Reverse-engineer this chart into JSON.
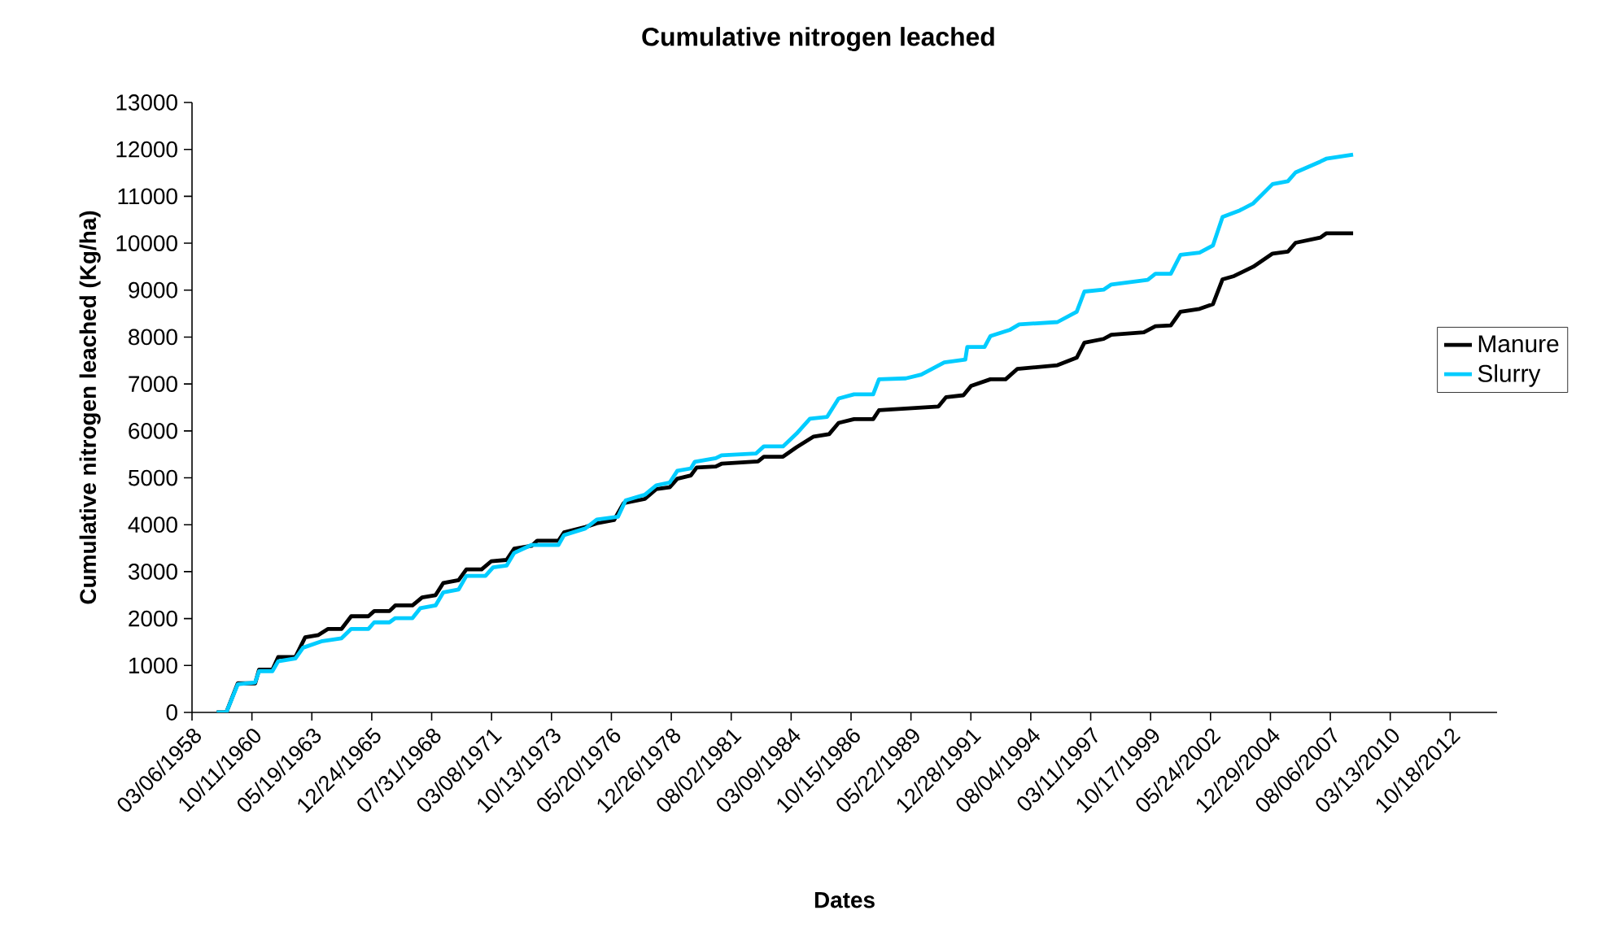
{
  "chart_data": {
    "type": "line",
    "title": "Cumulative nitrogen leached",
    "xlabel": "Dates",
    "ylabel": "Cumulative nitrogen leached (Kg/ha)",
    "xlim": [
      "1958-03-06",
      "2014-11"
    ],
    "xticks": [
      {
        "value": "1958-03-06",
        "label": "03/06/1958"
      },
      {
        "value": "1960-10-11",
        "label": "10/11/1960"
      },
      {
        "value": "1963-05-19",
        "label": "05/19/1963"
      },
      {
        "value": "1965-12-24",
        "label": "12/24/1965"
      },
      {
        "value": "1968-07-31",
        "label": "07/31/1968"
      },
      {
        "value": "1971-03-08",
        "label": "03/08/1971"
      },
      {
        "value": "1973-10-13",
        "label": "10/13/1973"
      },
      {
        "value": "1976-05-20",
        "label": "05/20/1976"
      },
      {
        "value": "1978-12-26",
        "label": "12/26/1978"
      },
      {
        "value": "1981-08-02",
        "label": "08/02/1981"
      },
      {
        "value": "1984-03-09",
        "label": "03/09/1984"
      },
      {
        "value": "1986-10-15",
        "label": "10/15/1986"
      },
      {
        "value": "1989-05-22",
        "label": "05/22/1989"
      },
      {
        "value": "1991-12-28",
        "label": "12/28/1991"
      },
      {
        "value": "1994-08-04",
        "label": "08/04/1994"
      },
      {
        "value": "1997-03-11",
        "label": "03/11/1997"
      },
      {
        "value": "1999-10-17",
        "label": "10/17/1999"
      },
      {
        "value": "2002-05-24",
        "label": "05/24/2002"
      },
      {
        "value": "2004-12-29",
        "label": "12/29/2004"
      },
      {
        "value": "2007-08-06",
        "label": "08/06/2007"
      },
      {
        "value": "2010-03-13",
        "label": "03/13/2010"
      },
      {
        "value": "2012-10-18",
        "label": "10/18/2012"
      }
    ],
    "ylim": [
      0,
      13000
    ],
    "yticks": [
      0,
      1000,
      2000,
      3000,
      4000,
      5000,
      6000,
      7000,
      8000,
      9000,
      10000,
      11000,
      12000,
      13000
    ],
    "legend": "right",
    "series": [
      {
        "name": "Manure",
        "color": "#000000",
        "x": [
          "1959-04",
          "1959-09",
          "1960-03",
          "1960-12",
          "1961-02",
          "1961-09",
          "1961-12",
          "1962-09",
          "1963-02",
          "1963-09",
          "1964-02",
          "1964-09",
          "1965-02",
          "1965-11",
          "1966-02",
          "1966-10",
          "1967-01",
          "1967-10",
          "1968-03",
          "1968-10",
          "1969-02",
          "1969-10",
          "1970-02",
          "1970-10",
          "1971-03",
          "1971-11",
          "1972-03",
          "1972-12",
          "1973-03",
          "1974-02",
          "1974-05",
          "1975-04",
          "1975-10",
          "1976-07",
          "1976-12",
          "1977-11",
          "1978-05",
          "1978-12",
          "1979-04",
          "1979-11",
          "1980-02",
          "1980-12",
          "1981-03",
          "1982-10",
          "1983-01",
          "1983-11",
          "1984-06",
          "1985-03",
          "1985-11",
          "1986-04",
          "1986-12",
          "1987-10",
          "1988-01",
          "1990-08",
          "1990-12",
          "1991-09",
          "1992-01",
          "1992-11",
          "1993-07",
          "1994-01",
          "1995-10",
          "1996-08",
          "1996-12",
          "1997-10",
          "1998-02",
          "1999-07",
          "2000-01",
          "2000-09",
          "2001-02",
          "2001-12",
          "2002-07",
          "2002-12",
          "2003-06",
          "2004-04",
          "2005-02",
          "2005-10",
          "2006-02",
          "2007-03",
          "2007-06",
          "2008-08"
        ],
        "values": [
          0,
          0,
          620,
          620,
          910,
          910,
          1180,
          1180,
          1600,
          1650,
          1780,
          1780,
          2050,
          2050,
          2160,
          2160,
          2280,
          2280,
          2450,
          2500,
          2760,
          2820,
          3050,
          3050,
          3220,
          3250,
          3490,
          3550,
          3660,
          3660,
          3840,
          3950,
          4030,
          4100,
          4460,
          4550,
          4760,
          4800,
          4980,
          5050,
          5220,
          5240,
          5300,
          5350,
          5450,
          5450,
          5650,
          5880,
          5930,
          6170,
          6250,
          6250,
          6440,
          6520,
          6720,
          6760,
          6960,
          7100,
          7100,
          7320,
          7400,
          7560,
          7880,
          7960,
          8050,
          8100,
          8230,
          8250,
          8540,
          8600,
          8700,
          9230,
          9300,
          9500,
          9780,
          9820,
          10010,
          10120,
          10210,
          10210
        ]
      },
      {
        "name": "Slurry",
        "color": "#00ccff",
        "x": [
          "1959-04",
          "1959-09",
          "1960-03",
          "1960-12",
          "1961-02",
          "1961-09",
          "1961-12",
          "1962-09",
          "1963-01",
          "1963-11",
          "1964-09",
          "1965-02",
          "1965-11",
          "1966-02",
          "1966-10",
          "1967-01",
          "1967-10",
          "1968-02",
          "1968-10",
          "1969-02",
          "1969-10",
          "1970-02",
          "1970-12",
          "1971-04",
          "1971-11",
          "1972-03",
          "1972-12",
          "1974-02",
          "1974-05",
          "1975-04",
          "1975-10",
          "1976-09",
          "1977-01",
          "1977-11",
          "1978-05",
          "1978-12",
          "1979-04",
          "1979-11",
          "1980-01",
          "1980-12",
          "1981-03",
          "1982-09",
          "1983-01",
          "1983-11",
          "1984-06",
          "1985-01",
          "1985-10",
          "1986-04",
          "1986-12",
          "1987-10",
          "1988-01",
          "1989-03",
          "1989-11",
          "1990-11",
          "1991-10",
          "1991-11",
          "1992-08",
          "1992-11",
          "1993-09",
          "1994-02",
          "1995-10",
          "1996-08",
          "1996-12",
          "1997-10",
          "1998-02",
          "1999-09",
          "2000-01",
          "2000-09",
          "2001-02",
          "2001-12",
          "2002-07",
          "2002-12",
          "2003-09",
          "2004-04",
          "2005-02",
          "2005-10",
          "2006-02",
          "2007-03",
          "2007-06",
          "2008-08"
        ],
        "values": [
          0,
          0,
          600,
          640,
          880,
          880,
          1090,
          1150,
          1380,
          1520,
          1580,
          1780,
          1780,
          1920,
          1920,
          2010,
          2010,
          2220,
          2280,
          2560,
          2620,
          2910,
          2910,
          3090,
          3130,
          3400,
          3570,
          3570,
          3780,
          3920,
          4110,
          4170,
          4520,
          4640,
          4840,
          4900,
          5150,
          5200,
          5340,
          5420,
          5480,
          5520,
          5670,
          5670,
          5940,
          6260,
          6300,
          6690,
          6780,
          6780,
          7100,
          7120,
          7200,
          7460,
          7520,
          7790,
          7790,
          8020,
          8150,
          8270,
          8320,
          8540,
          8970,
          9010,
          9120,
          9220,
          9350,
          9350,
          9750,
          9800,
          9950,
          10560,
          10700,
          10850,
          11260,
          11320,
          11510,
          11740,
          11800,
          11890
        ]
      }
    ]
  }
}
